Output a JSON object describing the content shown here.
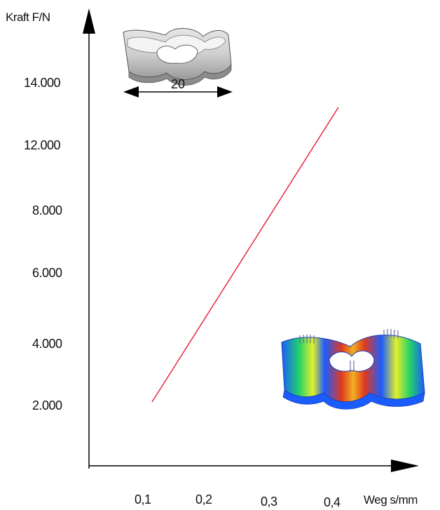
{
  "chart_data": {
    "type": "line",
    "x_axis_title": "Weg s/mm",
    "y_axis_title": "Kraft F/N",
    "x_ticks": [
      "0,1",
      "0,2",
      "0,3",
      "0,4"
    ],
    "y_ticks": [
      "2.000",
      "4.000",
      "6.000",
      "8.000",
      "12.000",
      "14.000"
    ],
    "series": [
      {
        "color": "#e8192c",
        "points": [
          {
            "x": 0.1,
            "y": 2000
          },
          {
            "x": 0.4,
            "y": 13200
          }
        ]
      }
    ],
    "grid": false,
    "legend": "none"
  },
  "annotations": {
    "dimension_label": "20",
    "top_image": "undeformed-part-illustration",
    "bottom_image": "fem-stress-plot-illustration"
  },
  "colors": {
    "axis": "#000000",
    "line": "#e8192c"
  }
}
